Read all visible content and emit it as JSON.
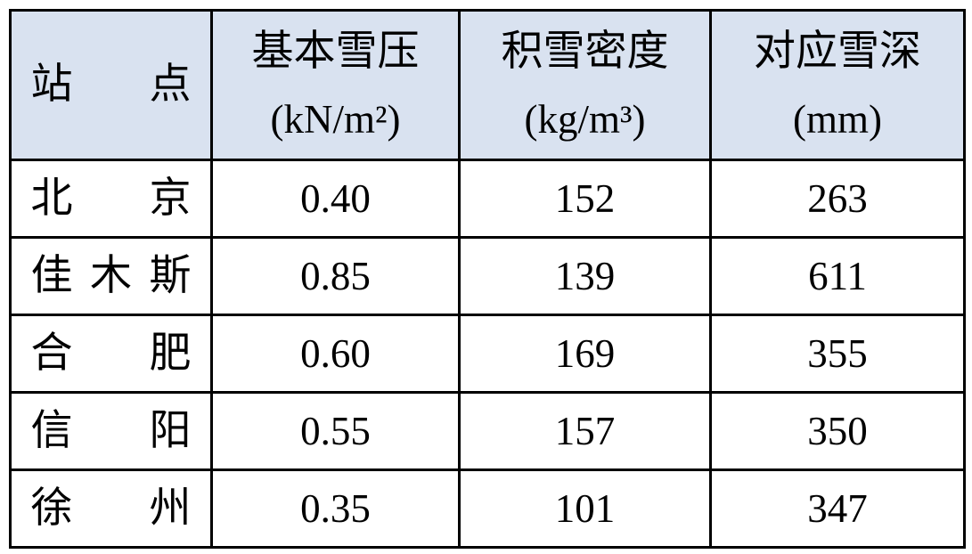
{
  "chart_data": {
    "type": "table",
    "station_header": "站点",
    "value_headers": [
      {
        "name": "基本雪压",
        "unit": "(kN/m²)"
      },
      {
        "name": "积雪密度",
        "unit": "(kg/m³)"
      },
      {
        "name": "对应雪深",
        "unit": "(mm)"
      }
    ],
    "rows": [
      {
        "station": "北京",
        "values": [
          "0.40",
          "152",
          "263"
        ]
      },
      {
        "station": "佳木斯",
        "values": [
          "0.85",
          "139",
          "611"
        ]
      },
      {
        "station": "合肥",
        "values": [
          "0.60",
          "169",
          "355"
        ]
      },
      {
        "station": "信阳",
        "values": [
          "0.55",
          "157",
          "350"
        ]
      },
      {
        "station": "徐州",
        "values": [
          "0.35",
          "101",
          "347"
        ]
      }
    ]
  },
  "colors": {
    "header_bg": "#D9E2F0",
    "border": "#000000",
    "row_bg": "#FFFFFF",
    "text": "#000000"
  }
}
